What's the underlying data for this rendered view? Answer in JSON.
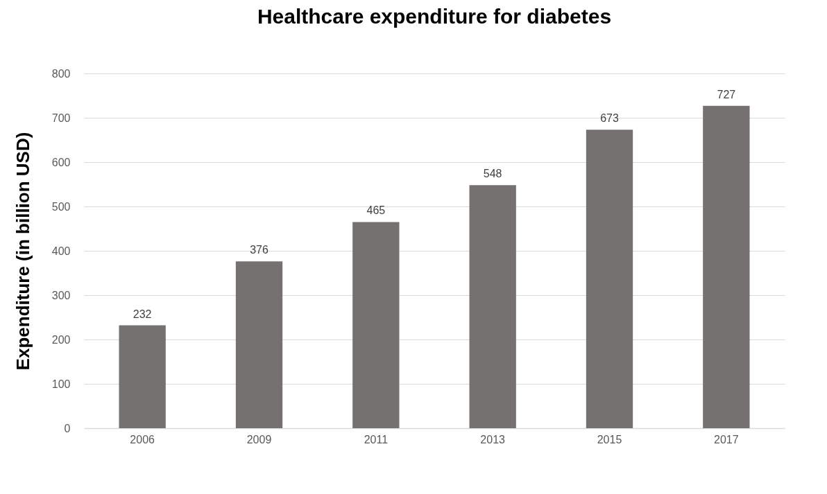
{
  "chart_data": {
    "type": "bar",
    "title": "Healthcare expenditure for diabetes",
    "ylabel": "Expenditure (in billion USD)",
    "categories": [
      "2006",
      "2009",
      "2011",
      "2013",
      "2015",
      "2017"
    ],
    "values": [
      232,
      376,
      465,
      548,
      673,
      727
    ],
    "color": "#767171",
    "ylim": [
      0,
      800
    ],
    "yticks": [
      0,
      100,
      200,
      300,
      400,
      500,
      600,
      700,
      800
    ],
    "grid": "y",
    "data_labels": true
  }
}
